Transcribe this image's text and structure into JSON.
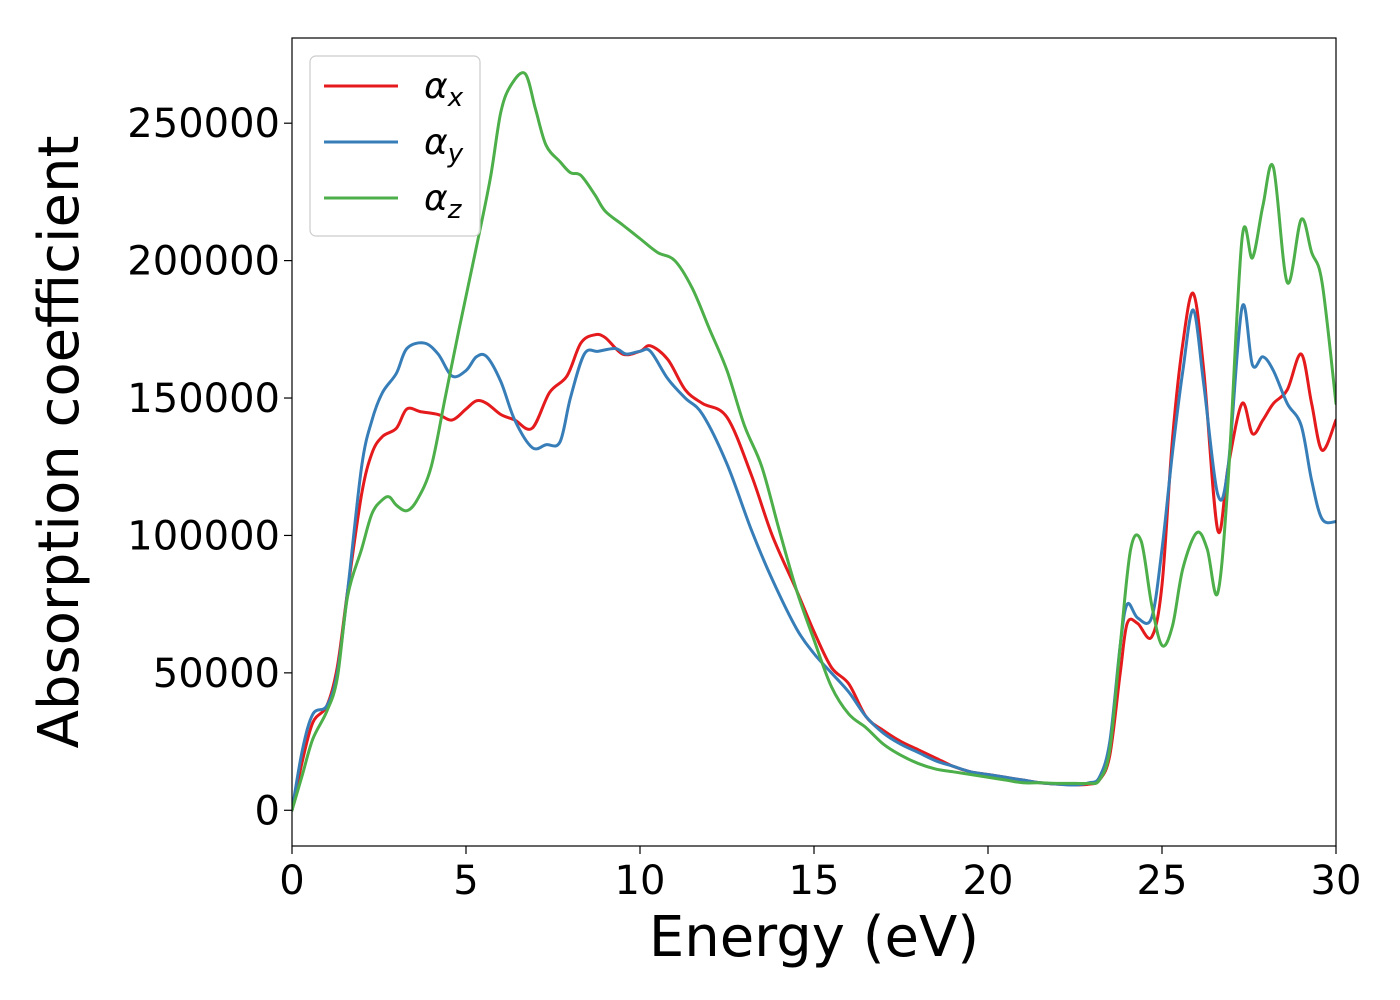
{
  "chart_data": {
    "type": "line",
    "title": "",
    "xlabel": "Energy (eV)",
    "ylabel": "Absorption coefficient",
    "xlim": [
      0,
      30
    ],
    "ylim": [
      -13000,
      281000
    ],
    "xticks": [
      0,
      5,
      10,
      15,
      20,
      25,
      30
    ],
    "xtick_labels": [
      "0",
      "5",
      "10",
      "15",
      "20",
      "25",
      "30"
    ],
    "yticks": [
      0,
      50000,
      100000,
      150000,
      200000,
      250000
    ],
    "ytick_labels": [
      "0",
      "50000",
      "100000",
      "150000",
      "200000",
      "250000"
    ],
    "grid": false,
    "legend_position": "top-left",
    "series": [
      {
        "name": "αx",
        "symbol": "α",
        "subscript": "x",
        "color": "#e41a1c",
        "x": [
          0,
          0.3,
          0.6,
          1.0,
          1.3,
          1.6,
          2.0,
          2.3,
          2.6,
          3.0,
          3.3,
          3.7,
          4.2,
          4.6,
          5.0,
          5.3,
          5.6,
          6.0,
          6.4,
          6.9,
          7.4,
          7.9,
          8.3,
          8.7,
          9.0,
          9.5,
          10.0,
          10.3,
          10.8,
          11.3,
          11.8,
          12.5,
          13.2,
          13.8,
          14.5,
          15.0,
          15.5,
          16.0,
          16.5,
          17.0,
          17.5,
          18.0,
          18.5,
          19.0,
          19.5,
          20.0,
          20.5,
          21.0,
          21.5,
          22.0,
          22.5,
          22.9,
          23.2,
          23.5,
          23.8,
          24.0,
          24.3,
          24.7,
          25.0,
          25.3,
          25.6,
          25.9,
          26.2,
          26.6,
          26.9,
          27.3,
          27.6,
          27.9,
          28.2,
          28.6,
          29.0,
          29.3,
          29.6,
          30.0
        ],
        "y": [
          0,
          18000,
          32000,
          38000,
          52000,
          80000,
          115000,
          130000,
          136000,
          139000,
          146000,
          145000,
          144000,
          142000,
          146000,
          149000,
          148000,
          144000,
          142000,
          139000,
          152000,
          158000,
          170000,
          173000,
          172000,
          166000,
          167000,
          169000,
          164000,
          153000,
          148000,
          143000,
          122000,
          100000,
          80000,
          65000,
          52000,
          46000,
          34000,
          29000,
          25000,
          22000,
          19000,
          16000,
          14000,
          13000,
          12000,
          11000,
          10000,
          9500,
          9200,
          9500,
          11000,
          20000,
          50000,
          68000,
          68000,
          63000,
          82000,
          135000,
          170000,
          188000,
          160000,
          102000,
          125000,
          148000,
          137000,
          142000,
          148000,
          153000,
          166000,
          148000,
          131000,
          142000
        ]
      },
      {
        "name": "αy",
        "symbol": "α",
        "subscript": "y",
        "color": "#377eb8",
        "x": [
          0,
          0.3,
          0.6,
          1.0,
          1.3,
          1.6,
          2.0,
          2.3,
          2.6,
          3.0,
          3.3,
          3.8,
          4.2,
          4.6,
          5.0,
          5.3,
          5.6,
          6.0,
          6.4,
          6.9,
          7.3,
          7.7,
          8.0,
          8.4,
          8.8,
          9.3,
          9.6,
          10.0,
          10.3,
          10.8,
          11.3,
          11.8,
          12.5,
          13.2,
          13.8,
          14.5,
          15.0,
          15.5,
          16.0,
          16.5,
          17.0,
          17.5,
          18.0,
          18.5,
          19.0,
          19.5,
          20.0,
          20.5,
          21.0,
          21.5,
          22.0,
          22.5,
          22.9,
          23.2,
          23.5,
          23.8,
          24.0,
          24.3,
          24.7,
          25.0,
          25.3,
          25.6,
          25.9,
          26.2,
          26.6,
          26.9,
          27.3,
          27.6,
          27.9,
          28.2,
          28.6,
          29.0,
          29.3,
          29.6,
          30.0
        ],
        "y": [
          0,
          22000,
          35000,
          38000,
          50000,
          80000,
          125000,
          142000,
          152000,
          159000,
          168000,
          170000,
          166000,
          158000,
          160000,
          165000,
          165000,
          156000,
          142000,
          132000,
          133000,
          134000,
          150000,
          166000,
          167000,
          168000,
          166000,
          167000,
          167000,
          157000,
          150000,
          144000,
          126000,
          102000,
          84000,
          66000,
          57000,
          50000,
          43000,
          34000,
          28000,
          24000,
          21000,
          18000,
          16000,
          14000,
          13000,
          12000,
          11000,
          10000,
          9500,
          9200,
          10000,
          12000,
          25000,
          60000,
          75000,
          70000,
          70000,
          95000,
          130000,
          160000,
          182000,
          155000,
          115000,
          125000,
          183000,
          162000,
          165000,
          160000,
          148000,
          140000,
          120000,
          106000,
          105000
        ]
      },
      {
        "name": "αz",
        "symbol": "α",
        "subscript": "z",
        "color": "#4daf4a",
        "x": [
          0,
          0.3,
          0.6,
          1.0,
          1.3,
          1.6,
          2.0,
          2.3,
          2.6,
          2.8,
          3.0,
          3.3,
          3.6,
          4.0,
          4.4,
          4.8,
          5.3,
          5.7,
          6.0,
          6.3,
          6.7,
          7.0,
          7.3,
          7.7,
          8.0,
          8.3,
          8.7,
          9.0,
          9.5,
          10.0,
          10.5,
          11.0,
          11.5,
          12.0,
          12.5,
          13.0,
          13.5,
          14.0,
          14.5,
          15.0,
          15.5,
          16.0,
          16.5,
          17.0,
          17.5,
          18.0,
          18.5,
          19.0,
          19.5,
          20.0,
          20.5,
          21.0,
          21.5,
          22.0,
          22.5,
          22.9,
          23.2,
          23.5,
          23.8,
          24.1,
          24.4,
          24.7,
          25.0,
          25.3,
          25.6,
          26.0,
          26.3,
          26.6,
          26.9,
          27.3,
          27.6,
          27.9,
          28.2,
          28.6,
          29.0,
          29.3,
          29.6,
          30.0
        ],
        "y": [
          0,
          13000,
          26000,
          36000,
          48000,
          78000,
          95000,
          108000,
          113000,
          114000,
          111000,
          109000,
          113000,
          125000,
          150000,
          175000,
          205000,
          230000,
          254000,
          264000,
          268000,
          255000,
          242000,
          236000,
          232000,
          231000,
          224000,
          218000,
          213000,
          208000,
          203000,
          200000,
          190000,
          175000,
          160000,
          140000,
          125000,
          102000,
          80000,
          62000,
          45000,
          35000,
          30000,
          24000,
          20000,
          17000,
          15000,
          14000,
          13000,
          12000,
          11000,
          10000,
          10000,
          9800,
          9800,
          9800,
          11000,
          22000,
          60000,
          95000,
          98000,
          75000,
          60000,
          67000,
          88000,
          101000,
          95000,
          79000,
          120000,
          208000,
          201000,
          220000,
          234000,
          192000,
          215000,
          203000,
          192000,
          148000
        ]
      }
    ]
  }
}
